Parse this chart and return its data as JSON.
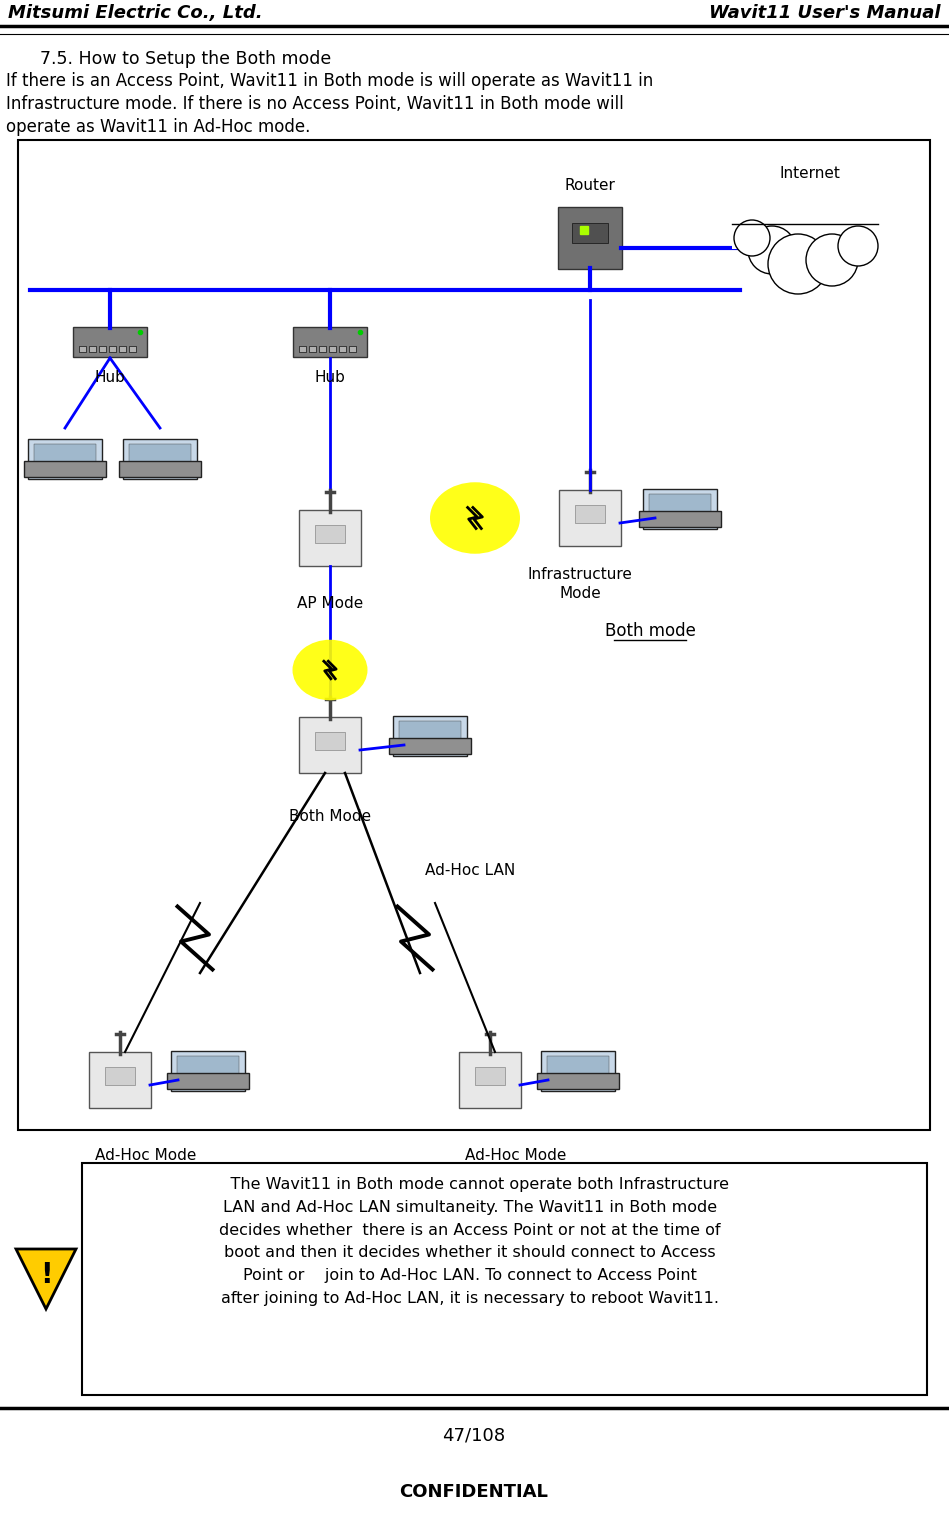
{
  "header_left": "Mitsumi Electric Co., Ltd.",
  "header_right": "Wavit11 User's Manual",
  "section_title": "    7.5. How to Setup the Both mode",
  "intro_line1": "If there is an Access Point, Wavit11 in Both mode is will operate as Wavit11 in",
  "intro_line2": "Infrastructure mode. If there is no Access Point, Wavit11 in Both mode will",
  "intro_line3": "operate as Wavit11 in Ad-Hoc mode.",
  "footer_page": "47/108",
  "footer_conf": "CONFIDENTIAL",
  "warning_text": "    The Wavit11 in Both mode cannot operate both Infrastructure\nLAN and Ad-Hoc LAN simultaneity. The Wavit11 in Both mode\ndecides whether  there is an Access Point or not at the time of\nboot and then it decides whether it should connect to Access\nPoint or    join to Ad-Hoc LAN. To connect to Access Point\nafter joining to Ad-Hoc LAN, it is necessary to reboot Wavit11.",
  "bg_color": "#ffffff",
  "blue_line_color": "#0000ff",
  "label_router": "Router",
  "label_internet": "Internet",
  "label_hub1": "Hub",
  "label_hub2": "Hub",
  "label_ap_mode": "AP Mode",
  "label_infra_mode": "Infrastructure\nMode",
  "label_both_mode_dev": "Both Mode",
  "label_both_mode_legend": "Both mode",
  "label_adhoc_lan": "Ad-Hoc LAN",
  "label_adhoc1": "Ad-Hoc Mode",
  "label_adhoc2": "Ad-Hoc Mode"
}
